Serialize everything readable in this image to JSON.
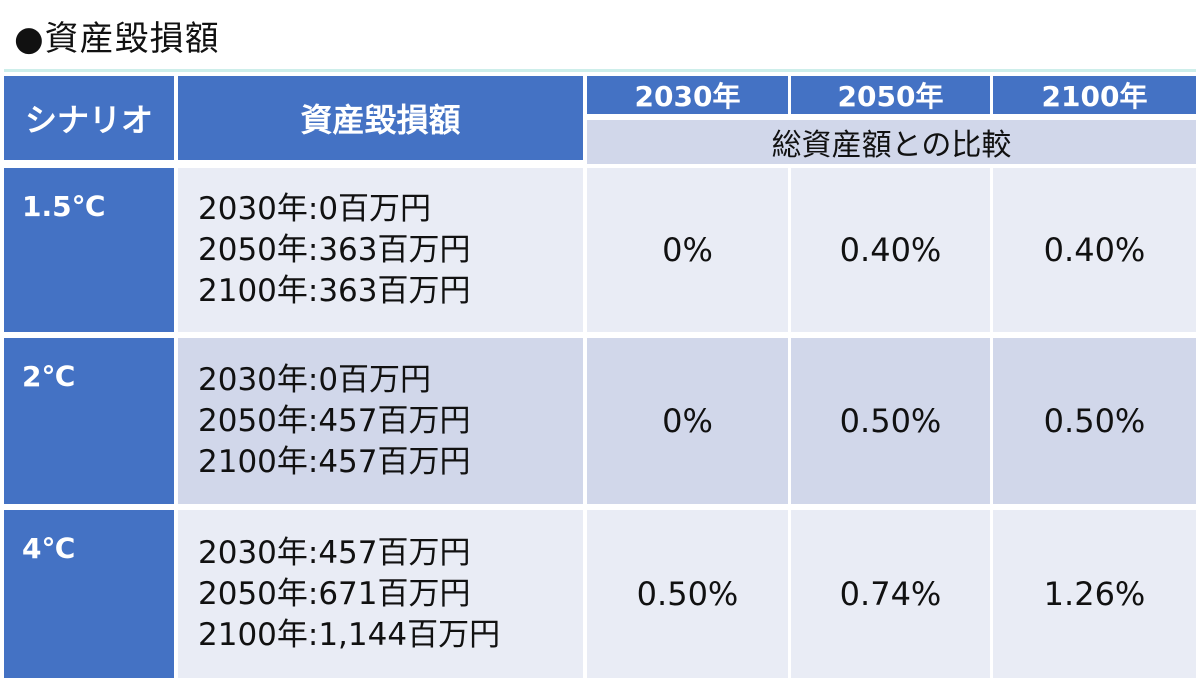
{
  "title": "●資産毀損額",
  "header": {
    "scenario": "シナリオ",
    "amount": "資産毀損額",
    "years": [
      "2030年",
      "2050年",
      "2100年"
    ],
    "comparison": "総資産額との比較"
  },
  "rows": [
    {
      "scenario": "1.5℃",
      "amounts": [
        "2030年:0百万円",
        "2050年:363百万円",
        "2100年:363百万円"
      ],
      "ratios": [
        "0%",
        "0.40%",
        "0.40%"
      ]
    },
    {
      "scenario": "2℃",
      "amounts": [
        "2030年:0百万円",
        "2050年:457百万円",
        "2100年:457百万円"
      ],
      "ratios": [
        "0%",
        "0.50%",
        "0.50%"
      ]
    },
    {
      "scenario": "4℃",
      "amounts": [
        "2030年:457百万円",
        "2050年:671百万円",
        "2100年:1,144百万円"
      ],
      "ratios": [
        "0.50%",
        "0.74%",
        "1.26%"
      ]
    }
  ],
  "colors": {
    "header_blue": "#4472c4",
    "row_light": "#e9ecf5",
    "row_medium": "#d1d7ea"
  }
}
